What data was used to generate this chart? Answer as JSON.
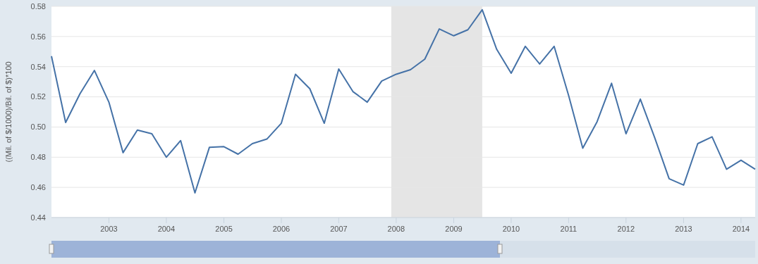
{
  "chart_data": {
    "type": "line",
    "ylabel": "((Mil. of $/1000)/Bil. of $)*100",
    "x": [
      "2002-01",
      "2002-04",
      "2002-07",
      "2002-10",
      "2003-01",
      "2003-04",
      "2003-07",
      "2003-10",
      "2004-01",
      "2004-04",
      "2004-07",
      "2004-10",
      "2005-01",
      "2005-04",
      "2005-07",
      "2005-10",
      "2006-01",
      "2006-04",
      "2006-07",
      "2006-10",
      "2007-01",
      "2007-04",
      "2007-07",
      "2007-10",
      "2008-01",
      "2008-04",
      "2008-07",
      "2008-10",
      "2009-01",
      "2009-04",
      "2009-07",
      "2009-10",
      "2010-01",
      "2010-04",
      "2010-07",
      "2010-10",
      "2011-01",
      "2011-04",
      "2011-07",
      "2011-10",
      "2012-01",
      "2012-04",
      "2012-07",
      "2012-10",
      "2013-01",
      "2013-04",
      "2013-07",
      "2013-10",
      "2014-01",
      "2014-04"
    ],
    "series": [
      {
        "color": "#4572a7",
        "values": [
          0.547,
          0.503,
          0.522,
          0.5375,
          0.5165,
          0.483,
          0.498,
          0.4955,
          0.48,
          0.491,
          0.4563,
          0.4866,
          0.487,
          0.482,
          0.489,
          0.492,
          0.5025,
          0.535,
          0.5254,
          0.5025,
          0.5385,
          0.5235,
          0.5165,
          0.5305,
          0.535,
          0.538,
          0.545,
          0.565,
          0.5605,
          0.5645,
          0.5777,
          0.5515,
          0.5357,
          0.5535,
          0.5418,
          0.5535,
          0.521,
          0.486,
          0.5035,
          0.529,
          0.4955,
          0.5185,
          0.493,
          0.4657,
          0.4615,
          0.489,
          0.4935,
          0.472,
          0.478,
          0.472
        ]
      }
    ],
    "xlim": [
      "2002-01",
      "2014-04"
    ],
    "xticks": [
      "2003",
      "2004",
      "2005",
      "2006",
      "2007",
      "2008",
      "2009",
      "2010",
      "2011",
      "2012",
      "2013",
      "2014"
    ],
    "ylim": [
      0.44,
      0.58
    ],
    "yticks": [
      0.44,
      0.46,
      0.48,
      {
        "value": 0.5,
        "label": "0.50"
      },
      0.52,
      0.54,
      0.56,
      0.58
    ],
    "bands": [
      {
        "axis": "x",
        "from": "2007-12",
        "to": "2009-07",
        "color": "#e5e5e5"
      }
    ],
    "grid": "y",
    "line_style": "solid",
    "marker": "none"
  }
}
